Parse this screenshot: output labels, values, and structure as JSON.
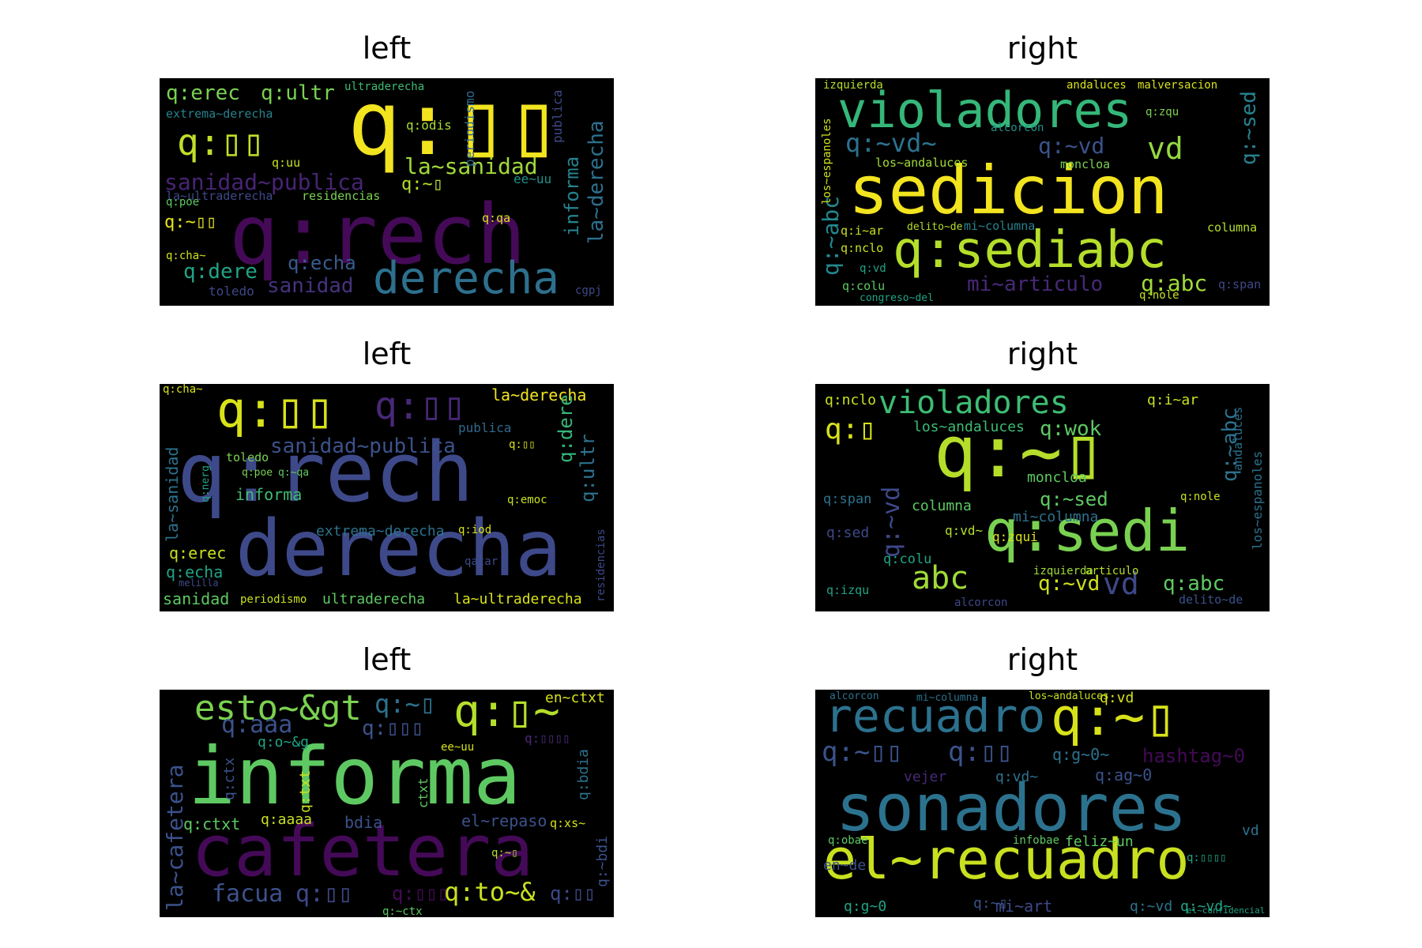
{
  "figure": {
    "panels": [
      {
        "title": "left",
        "words": [
          {
            "text": "q:▯▯",
            "color": "#f2e41f"
          },
          {
            "text": "q:rech",
            "color": "#440a57"
          },
          {
            "text": "derecha",
            "color": "#2d708e"
          },
          {
            "text": "q:▯▯",
            "color": "#c1de29"
          },
          {
            "text": "la~sanidad",
            "color": "#a0da39"
          },
          {
            "text": "sanidad~publica",
            "color": "#482474"
          },
          {
            "text": "q:erec",
            "color": "#7ad151"
          },
          {
            "text": "q:ultr",
            "color": "#7ad151"
          },
          {
            "text": "ultraderecha",
            "color": "#3dbc74"
          },
          {
            "text": "extrema~derecha",
            "color": "#26828e"
          },
          {
            "text": "la~ultraderecha",
            "color": "#3e4989"
          },
          {
            "text": "residencias",
            "color": "#7ad151"
          },
          {
            "text": "sanidad",
            "color": "#46327e"
          },
          {
            "text": "q:dere",
            "color": "#20a486"
          },
          {
            "text": "q:echa",
            "color": "#375b8d"
          },
          {
            "text": "la~derecha",
            "color": "#2d708e"
          },
          {
            "text": "informa",
            "color": "#26828e"
          },
          {
            "text": "periodismo",
            "color": "#31688e"
          },
          {
            "text": "q:odis",
            "color": "#a8db34"
          },
          {
            "text": "q:~▯",
            "color": "#b5de2b"
          },
          {
            "text": "toledo",
            "color": "#3e4989"
          },
          {
            "text": "q:cha~",
            "color": "#d0e11c"
          },
          {
            "text": "q:~▯▯",
            "color": "#e5e419"
          },
          {
            "text": "cgpj",
            "color": "#3e4989"
          },
          {
            "text": "ee~uu",
            "color": "#21918c"
          },
          {
            "text": "publica",
            "color": "#3e4989"
          },
          {
            "text": "q:uu",
            "color": "#c8e020"
          },
          {
            "text": "q:qa",
            "color": "#d8e219"
          },
          {
            "text": "q:poe",
            "color": "#5ec962"
          }
        ]
      },
      {
        "title": "right",
        "words": [
          {
            "text": "sedicion",
            "color": "#f2e41f"
          },
          {
            "text": "violadores",
            "color": "#35b779"
          },
          {
            "text": "q:sediabc",
            "color": "#b5de2b"
          },
          {
            "text": "q:~vd~",
            "color": "#2c728e"
          },
          {
            "text": "vd",
            "color": "#95d840"
          },
          {
            "text": "q:~vd",
            "color": "#3b528b"
          },
          {
            "text": "los~andaluces",
            "color": "#a0da39"
          },
          {
            "text": "mi~columna",
            "color": "#26828e"
          },
          {
            "text": "mi~articulo",
            "color": "#482878"
          },
          {
            "text": "q:~abc",
            "color": "#23898e"
          },
          {
            "text": "los~espanoles",
            "color": "#d0e11c"
          },
          {
            "text": "q:abc",
            "color": "#a0da39"
          },
          {
            "text": "columna",
            "color": "#b5de2b"
          },
          {
            "text": "moncloa",
            "color": "#7ad151"
          },
          {
            "text": "delito~de",
            "color": "#b5de2b"
          },
          {
            "text": "andaluces",
            "color": "#d8e219"
          },
          {
            "text": "malversacion",
            "color": "#d8e219"
          },
          {
            "text": "q:~sed",
            "color": "#26828e"
          },
          {
            "text": "q:nclo",
            "color": "#c8e020"
          },
          {
            "text": "izquierda",
            "color": "#b5de2b"
          },
          {
            "text": "q:i~ar",
            "color": "#c8e020"
          },
          {
            "text": "q:colu",
            "color": "#5ec962"
          },
          {
            "text": "congreso~del",
            "color": "#20a486"
          },
          {
            "text": "q:nole",
            "color": "#c8e020"
          },
          {
            "text": "q:span",
            "color": "#3e4989"
          },
          {
            "text": "q:vd",
            "color": "#20a486"
          },
          {
            "text": "q:zqu",
            "color": "#7ad151"
          },
          {
            "text": "alcorcon",
            "color": "#21918c"
          }
        ]
      },
      {
        "title": "left",
        "words": [
          {
            "text": "q:rech",
            "color": "#3e4989"
          },
          {
            "text": "derecha",
            "color": "#3e4989"
          },
          {
            "text": "q:▯▯",
            "color": "#d8e219"
          },
          {
            "text": "q:▯▯",
            "color": "#482878"
          },
          {
            "text": "sanidad~publica",
            "color": "#3b528b"
          },
          {
            "text": "la~derecha",
            "color": "#f2e41f"
          },
          {
            "text": "la~sanidad",
            "color": "#2c728e"
          },
          {
            "text": "informa",
            "color": "#3dbc74"
          },
          {
            "text": "extrema~derecha",
            "color": "#2c728e"
          },
          {
            "text": "ultraderecha",
            "color": "#5ec962"
          },
          {
            "text": "la~ultraderecha",
            "color": "#d8e219"
          },
          {
            "text": "sanidad",
            "color": "#5ec962"
          },
          {
            "text": "periodismo",
            "color": "#c8e020"
          },
          {
            "text": "q:erec",
            "color": "#c8e020"
          },
          {
            "text": "q:echa",
            "color": "#20a486"
          },
          {
            "text": "q:ultr",
            "color": "#2c728e"
          },
          {
            "text": "q:dere",
            "color": "#35b779"
          },
          {
            "text": "publica",
            "color": "#31688e"
          },
          {
            "text": "q:cha~",
            "color": "#d8e219"
          },
          {
            "text": "residencias",
            "color": "#3e4989"
          },
          {
            "text": "q:emoc",
            "color": "#c8e020"
          },
          {
            "text": "q:iod",
            "color": "#d8e219"
          },
          {
            "text": "q:▯▯",
            "color": "#d8e219"
          },
          {
            "text": "toledo",
            "color": "#7ad151"
          },
          {
            "text": "q:~qa",
            "color": "#5ec962"
          },
          {
            "text": "q:poe",
            "color": "#7ad151"
          },
          {
            "text": "q:nerg",
            "color": "#20a486"
          },
          {
            "text": "qatar",
            "color": "#3e4989"
          },
          {
            "text": "melilla",
            "color": "#3e4989"
          }
        ]
      },
      {
        "title": "right",
        "words": [
          {
            "text": "q:~▯",
            "color": "#b5de2b"
          },
          {
            "text": "q:sedi",
            "color": "#7ad151"
          },
          {
            "text": "violadores",
            "color": "#3dbc74"
          },
          {
            "text": "abc",
            "color": "#a0da39"
          },
          {
            "text": "vd",
            "color": "#3e4989"
          },
          {
            "text": "q:~vd",
            "color": "#d0e11c"
          },
          {
            "text": "q:~abc",
            "color": "#2c728e"
          },
          {
            "text": "los~andaluces",
            "color": "#3dbc74"
          },
          {
            "text": "q:wok",
            "color": "#5ec962"
          },
          {
            "text": "q:~sed",
            "color": "#5ec962"
          },
          {
            "text": "mi~columna",
            "color": "#2c728e"
          },
          {
            "text": "q:abc",
            "color": "#5ec962"
          },
          {
            "text": "q:▯",
            "color": "#d8e219"
          },
          {
            "text": "los~espanoles",
            "color": "#2c728e"
          },
          {
            "text": "q:~vd",
            "color": "#3e4989"
          },
          {
            "text": "columna",
            "color": "#5ec962"
          },
          {
            "text": "moncloa",
            "color": "#5ec962"
          },
          {
            "text": "izquierda",
            "color": "#a0da39"
          },
          {
            "text": "articulo",
            "color": "#b5de2b"
          },
          {
            "text": "q:zqui",
            "color": "#d8e219"
          },
          {
            "text": "delito~de",
            "color": "#3b528b"
          },
          {
            "text": "alcorcon",
            "color": "#3e4989"
          },
          {
            "text": "q:nclo",
            "color": "#c8e020"
          },
          {
            "text": "q:i~ar",
            "color": "#c8e020"
          },
          {
            "text": "q:sed",
            "color": "#3e4989"
          },
          {
            "text": "q:span",
            "color": "#2c728e"
          },
          {
            "text": "q:izqu",
            "color": "#20a486"
          },
          {
            "text": "q:colu",
            "color": "#20a486"
          },
          {
            "text": "andaluces",
            "color": "#2c728e"
          },
          {
            "text": "q:nole",
            "color": "#c8e020"
          },
          {
            "text": "q:vd~",
            "color": "#b5de2b"
          }
        ]
      },
      {
        "title": "left",
        "words": [
          {
            "text": "informa",
            "color": "#5ec962"
          },
          {
            "text": "cafetera",
            "color": "#440a57"
          },
          {
            "text": "esto~&gt",
            "color": "#7ad151"
          },
          {
            "text": "q:~▯",
            "color": "#2c728e"
          },
          {
            "text": "q:▯~",
            "color": "#b5de2b"
          },
          {
            "text": "en~ctxt",
            "color": "#d8e219"
          },
          {
            "text": "q:aaa",
            "color": "#3b528b"
          },
          {
            "text": "q:▯▯▯",
            "color": "#3b528b"
          },
          {
            "text": "q:▯▯",
            "color": "#3e4989"
          },
          {
            "text": "q:to~&",
            "color": "#c8e020"
          },
          {
            "text": "facua",
            "color": "#3b528b"
          },
          {
            "text": "q:▯▯▯",
            "color": "#440a57"
          },
          {
            "text": "q:▯▯",
            "color": "#3e4989"
          },
          {
            "text": "la~cafetera",
            "color": "#3b528b"
          },
          {
            "text": "q:ctxt",
            "color": "#5ec962"
          },
          {
            "text": "q:aaaa",
            "color": "#c8e020"
          },
          {
            "text": "bdia",
            "color": "#3b528b"
          },
          {
            "text": "el~repaso",
            "color": "#3b528b"
          },
          {
            "text": "q:txt",
            "color": "#c8e020"
          },
          {
            "text": "q:~bdi",
            "color": "#3b528b"
          },
          {
            "text": "q:bdia",
            "color": "#2c728e"
          },
          {
            "text": "ee~uu",
            "color": "#d8e219"
          },
          {
            "text": "q:o~&g",
            "color": "#20a486"
          },
          {
            "text": "q:xs~",
            "color": "#d8e219"
          },
          {
            "text": "q:~ctx",
            "color": "#5ec962"
          },
          {
            "text": "q:▯▯▯▯",
            "color": "#482878"
          },
          {
            "text": "q:ctx",
            "color": "#3b528b"
          },
          {
            "text": "q:~▯",
            "color": "#b5de2b"
          },
          {
            "text": "ctxt",
            "color": "#5ec962"
          }
        ]
      },
      {
        "title": "right",
        "words": [
          {
            "text": "sonadores",
            "color": "#2c728e"
          },
          {
            "text": "el~recuadro",
            "color": "#c8e020"
          },
          {
            "text": "recuadro",
            "color": "#2c728e"
          },
          {
            "text": "q:~▯",
            "color": "#d8e219"
          },
          {
            "text": "q:~▯▯",
            "color": "#3b528b"
          },
          {
            "text": "q:▯▯",
            "color": "#3b528b"
          },
          {
            "text": "hashtag~0",
            "color": "#440a57"
          },
          {
            "text": "q:g~0~",
            "color": "#2c728e"
          },
          {
            "text": "q:vd~",
            "color": "#2c728e"
          },
          {
            "text": "vejer",
            "color": "#482878"
          },
          {
            "text": "q:ag~0",
            "color": "#3b528b"
          },
          {
            "text": "q:vd",
            "color": "#d8e219"
          },
          {
            "text": "mi~art",
            "color": "#3e4989"
          },
          {
            "text": "q:g~0",
            "color": "#20a486"
          },
          {
            "text": "q:~vd",
            "color": "#2c728e"
          },
          {
            "text": "q:~vd~",
            "color": "#20a486"
          },
          {
            "text": "feliz~un",
            "color": "#5ec962"
          },
          {
            "text": "infobae",
            "color": "#5ec962"
          },
          {
            "text": "vd",
            "color": "#2c728e"
          },
          {
            "text": "q:obae",
            "color": "#5ec962"
          },
          {
            "text": "alcorcon",
            "color": "#2c728e"
          },
          {
            "text": "mi~columna",
            "color": "#2c728e"
          },
          {
            "text": "los~andaluces",
            "color": "#c8e020"
          },
          {
            "text": "q:~▯",
            "color": "#3b528b"
          },
          {
            "text": "en~de",
            "color": "#3b528b"
          },
          {
            "text": "el~confidencial",
            "color": "#20a486"
          },
          {
            "text": "q:▯▯▯▯",
            "color": "#20a486"
          }
        ]
      }
    ]
  }
}
